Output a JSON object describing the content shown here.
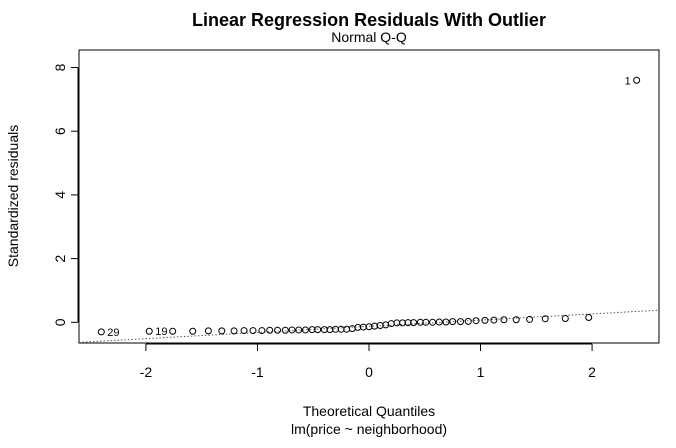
{
  "chart_data": {
    "type": "scatter",
    "title": "Linear Regression Residuals With Outlier",
    "subtitle": "Normal Q-Q",
    "xlabel": "Theoretical Quantiles",
    "xlabel2": "lm(price ~ neighborhood)",
    "ylabel": "Standardized residuals",
    "xlim": [
      -2.6,
      2.6
    ],
    "ylim": [
      -0.65,
      8.55
    ],
    "grid": false,
    "x_ticks": [
      {
        "value": -2,
        "label": "-2"
      },
      {
        "value": -1,
        "label": "-1"
      },
      {
        "value": 0,
        "label": "0"
      },
      {
        "value": 1,
        "label": "1"
      },
      {
        "value": 2,
        "label": "2"
      }
    ],
    "y_ticks": [
      {
        "value": 0,
        "label": "0"
      },
      {
        "value": 2,
        "label": "2"
      },
      {
        "value": 4,
        "label": "4"
      },
      {
        "value": 6,
        "label": "6"
      },
      {
        "value": 8,
        "label": "8"
      }
    ],
    "points": [
      {
        "x": -2.4,
        "y": -0.3,
        "label": "29"
      },
      {
        "x": -1.97,
        "y": -0.28,
        "label": "19"
      },
      {
        "x": -1.76,
        "y": -0.28,
        "label": ""
      },
      {
        "x": -1.58,
        "y": -0.28,
        "label": ""
      },
      {
        "x": -1.44,
        "y": -0.27,
        "label": ""
      },
      {
        "x": -1.32,
        "y": -0.27,
        "label": ""
      },
      {
        "x": -1.21,
        "y": -0.27,
        "label": ""
      },
      {
        "x": -1.12,
        "y": -0.26,
        "label": ""
      },
      {
        "x": -1.04,
        "y": -0.26,
        "label": ""
      },
      {
        "x": -0.96,
        "y": -0.26,
        "label": ""
      },
      {
        "x": -0.89,
        "y": -0.25,
        "label": ""
      },
      {
        "x": -0.82,
        "y": -0.25,
        "label": ""
      },
      {
        "x": -0.75,
        "y": -0.25,
        "label": ""
      },
      {
        "x": -0.69,
        "y": -0.24,
        "label": ""
      },
      {
        "x": -0.63,
        "y": -0.24,
        "label": ""
      },
      {
        "x": -0.57,
        "y": -0.24,
        "label": ""
      },
      {
        "x": -0.51,
        "y": -0.23,
        "label": ""
      },
      {
        "x": -0.46,
        "y": -0.23,
        "label": ""
      },
      {
        "x": -0.4,
        "y": -0.23,
        "label": ""
      },
      {
        "x": -0.35,
        "y": -0.23,
        "label": ""
      },
      {
        "x": -0.3,
        "y": -0.22,
        "label": ""
      },
      {
        "x": -0.25,
        "y": -0.22,
        "label": ""
      },
      {
        "x": -0.2,
        "y": -0.22,
        "label": ""
      },
      {
        "x": -0.15,
        "y": -0.2,
        "label": ""
      },
      {
        "x": -0.1,
        "y": -0.16,
        "label": ""
      },
      {
        "x": -0.05,
        "y": -0.15,
        "label": ""
      },
      {
        "x": 0.0,
        "y": -0.14,
        "label": ""
      },
      {
        "x": 0.05,
        "y": -0.12,
        "label": ""
      },
      {
        "x": 0.1,
        "y": -0.1,
        "label": ""
      },
      {
        "x": 0.15,
        "y": -0.08,
        "label": ""
      },
      {
        "x": 0.2,
        "y": -0.04,
        "label": ""
      },
      {
        "x": 0.25,
        "y": -0.02,
        "label": ""
      },
      {
        "x": 0.3,
        "y": -0.02,
        "label": ""
      },
      {
        "x": 0.35,
        "y": -0.01,
        "label": ""
      },
      {
        "x": 0.4,
        "y": -0.01,
        "label": ""
      },
      {
        "x": 0.46,
        "y": 0.0,
        "label": ""
      },
      {
        "x": 0.51,
        "y": 0.0,
        "label": ""
      },
      {
        "x": 0.57,
        "y": 0.0,
        "label": ""
      },
      {
        "x": 0.63,
        "y": 0.01,
        "label": ""
      },
      {
        "x": 0.69,
        "y": 0.01,
        "label": ""
      },
      {
        "x": 0.75,
        "y": 0.02,
        "label": ""
      },
      {
        "x": 0.82,
        "y": 0.02,
        "label": ""
      },
      {
        "x": 0.89,
        "y": 0.03,
        "label": ""
      },
      {
        "x": 0.96,
        "y": 0.05,
        "label": ""
      },
      {
        "x": 1.04,
        "y": 0.06,
        "label": ""
      },
      {
        "x": 1.12,
        "y": 0.07,
        "label": ""
      },
      {
        "x": 1.21,
        "y": 0.08,
        "label": ""
      },
      {
        "x": 1.32,
        "y": 0.08,
        "label": ""
      },
      {
        "x": 1.44,
        "y": 0.09,
        "label": ""
      },
      {
        "x": 1.58,
        "y": 0.11,
        "label": ""
      },
      {
        "x": 1.76,
        "y": 0.12,
        "label": ""
      },
      {
        "x": 1.97,
        "y": 0.15,
        "label": ""
      },
      {
        "x": 2.4,
        "y": 7.6,
        "label": "1"
      }
    ],
    "reference_line": {
      "x1": -2.6,
      "y1": -0.63,
      "x2": 2.6,
      "y2": 0.38,
      "style": "dotted"
    }
  }
}
